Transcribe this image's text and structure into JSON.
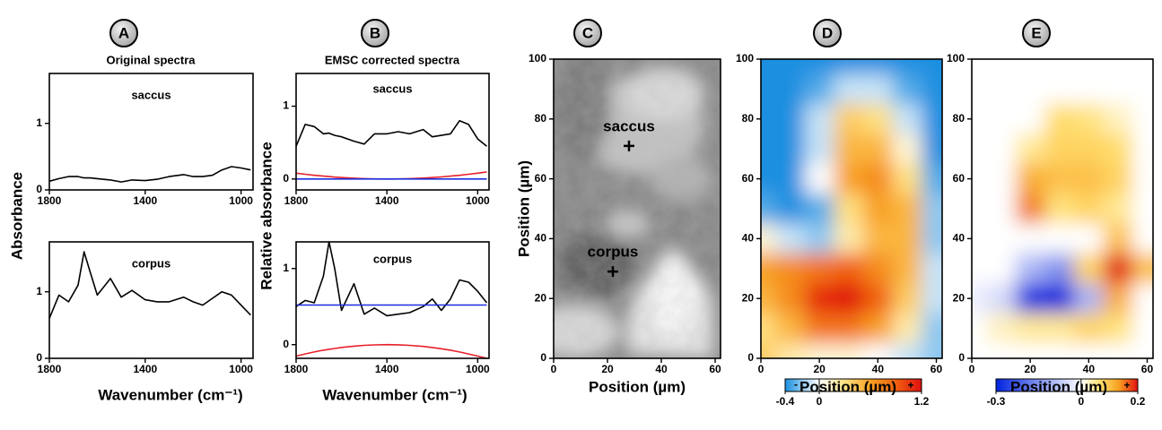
{
  "chart_data": [
    {
      "type": "line",
      "panel": "A",
      "title": "Original spectra",
      "ylabel": "Absorbance",
      "annotation": "saccus",
      "x": [
        1800,
        1760,
        1720,
        1680,
        1655,
        1630,
        1600,
        1545,
        1500,
        1455,
        1400,
        1350,
        1300,
        1240,
        1200,
        1160,
        1120,
        1080,
        1040,
        1000,
        960
      ],
      "xlim": [
        1800,
        950
      ],
      "xticks": [
        1800,
        1400,
        1000
      ],
      "ylim": [
        0,
        1.75
      ],
      "yticks": [
        0,
        1
      ],
      "series": [
        {
          "color": "#000000",
          "values": [
            0.13,
            0.17,
            0.2,
            0.2,
            0.18,
            0.18,
            0.17,
            0.15,
            0.12,
            0.15,
            0.14,
            0.16,
            0.2,
            0.23,
            0.2,
            0.2,
            0.22,
            0.3,
            0.35,
            0.33,
            0.3
          ]
        }
      ]
    },
    {
      "type": "line",
      "annotation": "corpus",
      "xlabel": "Wavenumber (cm⁻¹)",
      "x": [
        1800,
        1760,
        1720,
        1680,
        1655,
        1630,
        1600,
        1545,
        1500,
        1455,
        1400,
        1350,
        1300,
        1240,
        1200,
        1160,
        1120,
        1080,
        1040,
        1000,
        960
      ],
      "xlim": [
        1800,
        950
      ],
      "xticks": [
        1800,
        1400,
        1000
      ],
      "ylim": [
        0,
        1.75
      ],
      "yticks": [
        0,
        1
      ],
      "series": [
        {
          "color": "#000000",
          "values": [
            0.6,
            0.95,
            0.85,
            1.1,
            1.6,
            1.3,
            0.95,
            1.2,
            0.92,
            1.02,
            0.88,
            0.85,
            0.85,
            0.92,
            0.85,
            0.8,
            0.9,
            1.0,
            0.95,
            0.8,
            0.65
          ]
        }
      ]
    },
    {
      "type": "line",
      "panel": "B",
      "title": "EMSC corrected spectra",
      "ylabel": "Relative absorbance",
      "annotation": "saccus",
      "x": [
        1800,
        1760,
        1720,
        1680,
        1655,
        1630,
        1600,
        1545,
        1500,
        1455,
        1400,
        1350,
        1300,
        1240,
        1200,
        1160,
        1120,
        1080,
        1040,
        1000,
        960
      ],
      "xlim": [
        1800,
        950
      ],
      "xticks": [
        1800,
        1400,
        1000
      ],
      "ylim": [
        -0.15,
        1.45
      ],
      "yticks": [
        0,
        1
      ],
      "series": [
        {
          "color": "#000000",
          "values": [
            0.45,
            0.75,
            0.72,
            0.62,
            0.63,
            0.6,
            0.58,
            0.52,
            0.48,
            0.62,
            0.62,
            0.65,
            0.62,
            0.68,
            0.58,
            0.6,
            0.62,
            0.8,
            0.75,
            0.55,
            0.45
          ]
        },
        {
          "color": "#e8202a",
          "values": [
            0.08,
            0.065,
            0.051,
            0.039,
            0.033,
            0.026,
            0.02,
            0.011,
            0.005,
            0.002,
            0,
            0.001,
            0.005,
            0.013,
            0.02,
            0.029,
            0.039,
            0.051,
            0.065,
            0.08,
            0.097
          ]
        },
        {
          "color": "#1a2ee0",
          "values": [
            0,
            0,
            0,
            0,
            0,
            0,
            0,
            0,
            0,
            0,
            0,
            0,
            0,
            0,
            0,
            0,
            0,
            0,
            0,
            0,
            0
          ]
        }
      ]
    },
    {
      "type": "line",
      "annotation": "corpus",
      "xlabel": "Wavenumber (cm⁻¹)",
      "x": [
        1800,
        1760,
        1720,
        1680,
        1655,
        1630,
        1600,
        1545,
        1500,
        1455,
        1400,
        1350,
        1300,
        1240,
        1200,
        1160,
        1120,
        1080,
        1040,
        1000,
        960
      ],
      "xlim": [
        1800,
        950
      ],
      "xticks": [
        1800,
        1400,
        1000
      ],
      "ylim": [
        -0.18,
        1.35
      ],
      "yticks": [
        0,
        1
      ],
      "series": [
        {
          "color": "#000000",
          "values": [
            0.5,
            0.58,
            0.55,
            0.9,
            1.35,
            1.0,
            0.45,
            0.8,
            0.4,
            0.48,
            0.38,
            0.4,
            0.42,
            0.5,
            0.6,
            0.45,
            0.6,
            0.85,
            0.82,
            0.7,
            0.55
          ]
        },
        {
          "color": "#e8202a",
          "values": [
            -0.15,
            -0.122,
            -0.096,
            -0.073,
            -0.061,
            -0.05,
            -0.0375,
            -0.02,
            -0.009,
            -0.003,
            0,
            -0.002,
            -0.009,
            -0.024,
            -0.0375,
            -0.054,
            -0.073,
            -0.096,
            -0.122,
            -0.15,
            -0.18
          ]
        },
        {
          "color": "#1a2ee0",
          "values": [
            0.52,
            0.52,
            0.52,
            0.52,
            0.52,
            0.52,
            0.52,
            0.52,
            0.52,
            0.52,
            0.52,
            0.52,
            0.52,
            0.52,
            0.52,
            0.52,
            0.52,
            0.52,
            0.52,
            0.52,
            0.52
          ]
        }
      ]
    },
    {
      "type": "image",
      "panel": "C",
      "xlabel": "Position (µm)",
      "ylabel": "Position (µm)",
      "xlim": [
        0,
        62
      ],
      "xticks": [
        0,
        20,
        40,
        60
      ],
      "ylim": [
        0,
        100
      ],
      "yticks": [
        0,
        20,
        40,
        60,
        80,
        100
      ],
      "points": [
        {
          "label": "saccus",
          "x": 28,
          "y": 71
        },
        {
          "label": "corpus",
          "x": 22,
          "y": 29
        }
      ]
    },
    {
      "type": "heatmap",
      "panel": "D",
      "xlabel": "Position (µm)",
      "xlim": [
        0,
        62
      ],
      "xticks": [
        0,
        20,
        40,
        60
      ],
      "ylim": [
        0,
        100
      ],
      "yticks": [
        0,
        20,
        40,
        60,
        80,
        100
      ],
      "x": [
        0,
        10,
        20,
        30,
        40,
        50,
        60
      ],
      "y": [
        100,
        90,
        80,
        70,
        60,
        50,
        40,
        30,
        20,
        10,
        0
      ],
      "z": [
        [
          -0.4,
          -0.4,
          -0.4,
          -0.4,
          -0.4,
          -0.4,
          -0.4
        ],
        [
          -0.4,
          -0.4,
          -0.3,
          -0.1,
          -0.1,
          -0.3,
          -0.4
        ],
        [
          -0.4,
          -0.4,
          -0.1,
          0.4,
          0.3,
          -0.1,
          -0.4
        ],
        [
          -0.4,
          -0.4,
          -0.1,
          0.5,
          0.5,
          0.1,
          -0.4
        ],
        [
          -0.4,
          -0.4,
          0.0,
          0.6,
          0.7,
          0.3,
          -0.3
        ],
        [
          -0.3,
          -0.4,
          -0.3,
          0.3,
          0.6,
          0.5,
          -0.2
        ],
        [
          0.1,
          -0.1,
          -0.2,
          0.2,
          0.5,
          0.5,
          -0.2
        ],
        [
          0.6,
          0.7,
          0.8,
          0.9,
          0.7,
          0.5,
          -0.1
        ],
        [
          0.5,
          0.7,
          1.1,
          1.2,
          0.9,
          0.4,
          -0.1
        ],
        [
          0.3,
          0.5,
          0.8,
          0.8,
          0.6,
          0.2,
          -0.2
        ],
        [
          0.4,
          0.2,
          0.1,
          0.1,
          0.0,
          -0.1,
          -0.2
        ]
      ],
      "colormap": [
        "#1a8fe0",
        "#ffffff",
        "#ffe080",
        "#f8a020",
        "#f06010",
        "#e01010"
      ],
      "colorbar": {
        "lim": [
          -0.4,
          1.2
        ],
        "ticks": [
          -0.4,
          0,
          1.2
        ],
        "minus_label": "-",
        "plus_label": "+"
      }
    },
    {
      "type": "heatmap",
      "panel": "E",
      "xlabel": "Position (µm)",
      "xlim": [
        0,
        62
      ],
      "xticks": [
        0,
        20,
        40,
        60
      ],
      "ylim": [
        0,
        100
      ],
      "yticks": [
        0,
        20,
        40,
        60,
        80,
        100
      ],
      "x": [
        0,
        10,
        20,
        30,
        40,
        50,
        60
      ],
      "y": [
        100,
        90,
        80,
        70,
        60,
        50,
        40,
        30,
        20,
        10,
        0
      ],
      "z": [
        [
          0,
          0,
          0,
          0,
          0,
          0,
          0
        ],
        [
          0,
          0,
          0,
          0,
          0,
          0,
          0
        ],
        [
          0,
          0,
          0,
          0.07,
          0.06,
          0.03,
          0
        ],
        [
          0,
          0,
          0.05,
          0.08,
          0.08,
          0.07,
          0
        ],
        [
          0,
          0,
          0.12,
          0.1,
          0.1,
          0.08,
          0
        ],
        [
          0,
          0,
          0.15,
          0.06,
          0.08,
          0.05,
          0
        ],
        [
          0,
          0,
          0,
          0,
          0,
          0.1,
          0
        ],
        [
          0,
          0,
          -0.1,
          -0.15,
          0.08,
          0.2,
          0.1
        ],
        [
          -0.02,
          -0.05,
          -0.28,
          -0.3,
          -0.1,
          0.12,
          0
        ],
        [
          0,
          0.03,
          0.05,
          0.05,
          0.08,
          0.06,
          0
        ],
        [
          0,
          0,
          0,
          0,
          0,
          0,
          0
        ]
      ],
      "colormap": [
        "#0022dd",
        "#ffffff",
        "#ffe070",
        "#f8a020",
        "#e01010"
      ],
      "colorbar": {
        "lim": [
          -0.3,
          0.2
        ],
        "ticks": [
          -0.3,
          0,
          0.2
        ],
        "plus_label": "+"
      }
    }
  ]
}
